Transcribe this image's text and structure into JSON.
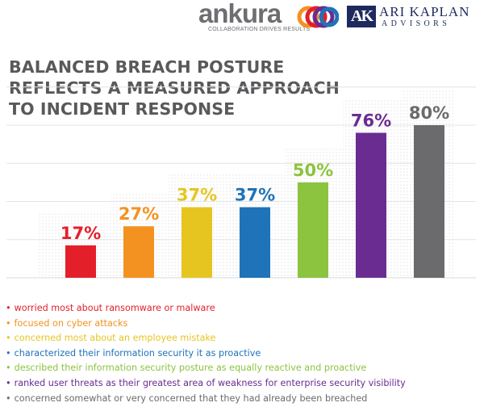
{
  "logos": {
    "ankura_name": "ankura",
    "ankura_tagline": "COLLABORATION DRIVES RESULTS",
    "ak_mark": "AK",
    "ak_name": "ARI KAPLAN",
    "ak_sub": "ADVISORS"
  },
  "title": "BALANCED BREACH POSTURE REFLECTS A MEASURED APPROACH TO INCIDENT RESPONSE",
  "chart_data": {
    "type": "bar",
    "title": "BALANCED BREACH POSTURE REFLECTS A MEASURED APPROACH TO INCIDENT RESPONSE",
    "xlabel": "",
    "ylabel": "",
    "ylim": [
      0,
      100
    ],
    "grid": true,
    "categories": [
      "worried most about ransomware or malware",
      "focused on cyber attacks",
      "concerned most about an employee mistake",
      "characterized their information security it as proactive",
      "described their information security posture as equally reactive and proactive",
      "ranked user threats as their greatest area of weakness for enterprise security visibility",
      "concerned somewhat or very concerned that they had already been breached"
    ],
    "values": [
      17,
      27,
      37,
      37,
      50,
      76,
      80
    ],
    "value_labels": [
      "17%",
      "27%",
      "37%",
      "37%",
      "50%",
      "76%",
      "80%"
    ],
    "colors": [
      "#e3202a",
      "#f39221",
      "#e6c520",
      "#1f73b8",
      "#8cc33f",
      "#6a2c91",
      "#6b6b6e"
    ],
    "legend_placement": "bottom"
  }
}
